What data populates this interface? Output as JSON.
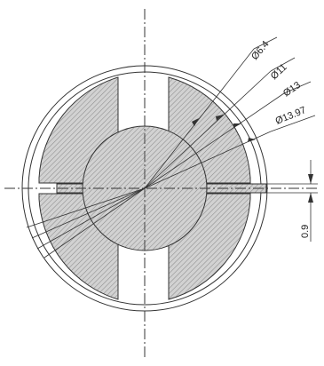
{
  "drawing": {
    "dimensions": [
      {
        "id": "d64",
        "label": "Ø6.4"
      },
      {
        "id": "d11",
        "label": "Ø11"
      },
      {
        "id": "d13",
        "label": "Ø13"
      },
      {
        "id": "d1397",
        "label": "Ø13.97"
      }
    ],
    "slot_width_label": "0.9",
    "colors": {
      "line": "#333333",
      "hatch_fill": "#cfcfcf",
      "hatch_stroke": "#8a8a8a",
      "background": "#ffffff"
    }
  }
}
